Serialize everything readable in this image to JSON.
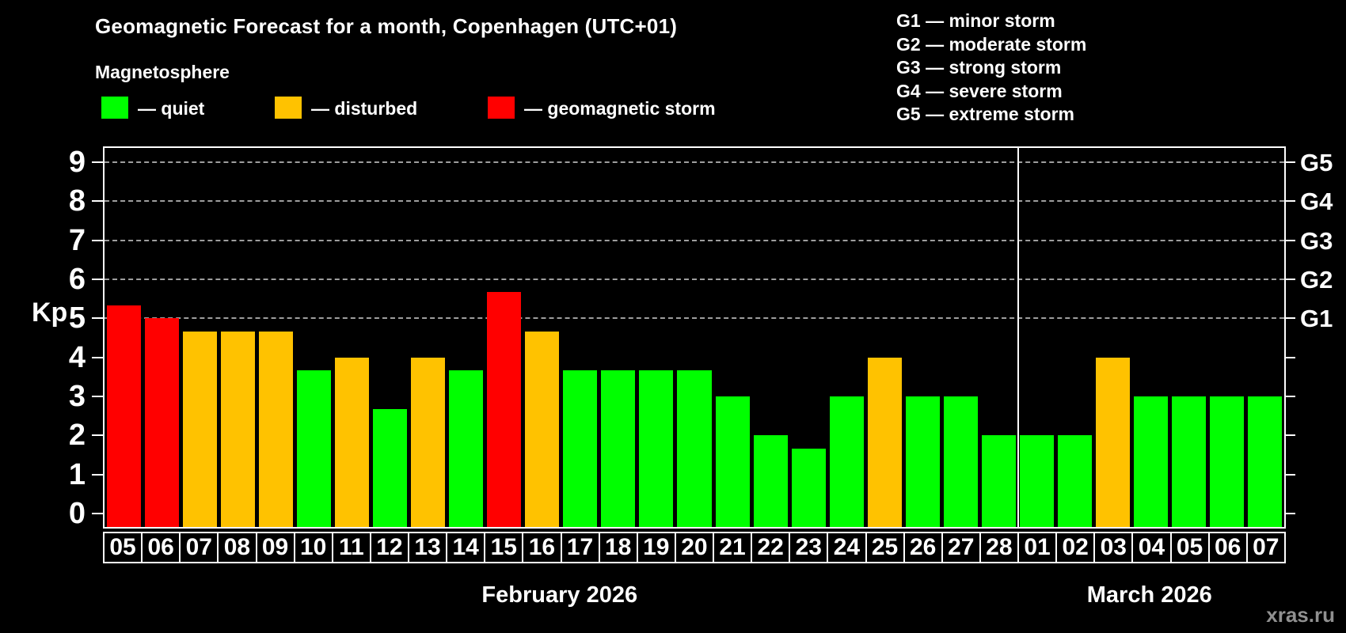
{
  "title": "Geomagnetic Forecast for a month, Copenhagen (UTC+01)",
  "subtitle": "Magnetosphere",
  "kp_axis_label": "Kp",
  "watermark": "xras.ru",
  "legend": [
    {
      "key": "quiet",
      "label": "— quiet",
      "color": "#00ff00"
    },
    {
      "key": "disturbed",
      "label": "— disturbed",
      "color": "#ffc200"
    },
    {
      "key": "storm",
      "label": "— geomagnetic storm",
      "color": "#ff0000"
    }
  ],
  "storm_scale_legend": [
    "G1 — minor storm",
    "G2 — moderate storm",
    "G3 — strong storm",
    "G4 — severe storm",
    "G5 — extreme storm"
  ],
  "chart_data": {
    "type": "bar",
    "title": "Geomagnetic Forecast for a month, Copenhagen (UTC+01)",
    "ylabel": "Kp",
    "ylim": [
      0,
      9
    ],
    "yticks": [
      0,
      1,
      2,
      3,
      4,
      5,
      6,
      7,
      8,
      9
    ],
    "grid": "horizontal dashed lines at Kp 5,6,7,8,9 only",
    "gridline_levels": [
      5,
      6,
      7,
      8,
      9
    ],
    "right_axis": [
      {
        "kp": 5,
        "label": "G1"
      },
      {
        "kp": 6,
        "label": "G2"
      },
      {
        "kp": 7,
        "label": "G3"
      },
      {
        "kp": 8,
        "label": "G4"
      },
      {
        "kp": 9,
        "label": "G5"
      }
    ],
    "status_colors": {
      "quiet": "#00ff00",
      "disturbed": "#ffc200",
      "storm": "#ff0000"
    },
    "months": [
      {
        "label": "February 2026",
        "days": 24
      },
      {
        "label": "March 2026",
        "days": 7
      }
    ],
    "bars": [
      {
        "day": "05",
        "month": "February 2026",
        "kp": 5.33,
        "status": "storm"
      },
      {
        "day": "06",
        "month": "February 2026",
        "kp": 5.0,
        "status": "storm"
      },
      {
        "day": "07",
        "month": "February 2026",
        "kp": 4.67,
        "status": "disturbed"
      },
      {
        "day": "08",
        "month": "February 2026",
        "kp": 4.67,
        "status": "disturbed"
      },
      {
        "day": "09",
        "month": "February 2026",
        "kp": 4.67,
        "status": "disturbed"
      },
      {
        "day": "10",
        "month": "February 2026",
        "kp": 3.67,
        "status": "quiet"
      },
      {
        "day": "11",
        "month": "February 2026",
        "kp": 4.0,
        "status": "disturbed"
      },
      {
        "day": "12",
        "month": "February 2026",
        "kp": 2.67,
        "status": "quiet"
      },
      {
        "day": "13",
        "month": "February 2026",
        "kp": 4.0,
        "status": "disturbed"
      },
      {
        "day": "14",
        "month": "February 2026",
        "kp": 3.67,
        "status": "quiet"
      },
      {
        "day": "15",
        "month": "February 2026",
        "kp": 5.67,
        "status": "storm"
      },
      {
        "day": "16",
        "month": "February 2026",
        "kp": 4.67,
        "status": "disturbed"
      },
      {
        "day": "17",
        "month": "February 2026",
        "kp": 3.67,
        "status": "quiet"
      },
      {
        "day": "18",
        "month": "February 2026",
        "kp": 3.67,
        "status": "quiet"
      },
      {
        "day": "19",
        "month": "February 2026",
        "kp": 3.67,
        "status": "quiet"
      },
      {
        "day": "20",
        "month": "February 2026",
        "kp": 3.67,
        "status": "quiet"
      },
      {
        "day": "21",
        "month": "February 2026",
        "kp": 3.0,
        "status": "quiet"
      },
      {
        "day": "22",
        "month": "February 2026",
        "kp": 2.0,
        "status": "quiet"
      },
      {
        "day": "23",
        "month": "February 2026",
        "kp": 1.67,
        "status": "quiet"
      },
      {
        "day": "24",
        "month": "February 2026",
        "kp": 3.0,
        "status": "quiet"
      },
      {
        "day": "25",
        "month": "February 2026",
        "kp": 4.0,
        "status": "disturbed"
      },
      {
        "day": "26",
        "month": "February 2026",
        "kp": 3.0,
        "status": "quiet"
      },
      {
        "day": "27",
        "month": "February 2026",
        "kp": 3.0,
        "status": "quiet"
      },
      {
        "day": "28",
        "month": "February 2026",
        "kp": 2.0,
        "status": "quiet"
      },
      {
        "day": "01",
        "month": "March 2026",
        "kp": 2.0,
        "status": "quiet"
      },
      {
        "day": "02",
        "month": "March 2026",
        "kp": 2.0,
        "status": "quiet"
      },
      {
        "day": "03",
        "month": "March 2026",
        "kp": 4.0,
        "status": "disturbed"
      },
      {
        "day": "04",
        "month": "March 2026",
        "kp": 3.0,
        "status": "quiet"
      },
      {
        "day": "05",
        "month": "March 2026",
        "kp": 3.0,
        "status": "quiet"
      },
      {
        "day": "06",
        "month": "March 2026",
        "kp": 3.0,
        "status": "quiet"
      },
      {
        "day": "07",
        "month": "March 2026",
        "kp": 3.0,
        "status": "quiet"
      }
    ]
  }
}
